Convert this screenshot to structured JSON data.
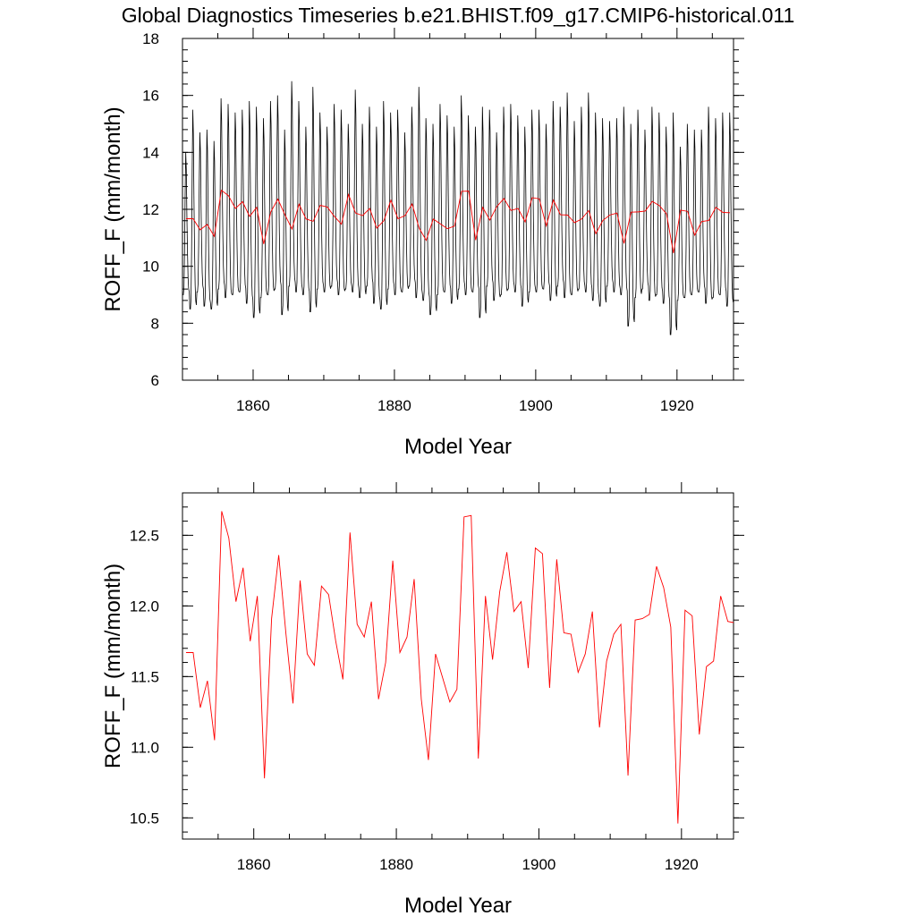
{
  "title": "Global Diagnostics Timeseries b.e21.BHIST.f09_g17.CMIP6-historical.011",
  "colors": {
    "monthly": "#000000",
    "annual": "#ff0000"
  },
  "chart_data": [
    {
      "type": "line",
      "xlabel": "Model Year",
      "ylabel": "ROFF_F (mm/month)",
      "xlim": [
        1850,
        1928
      ],
      "ylim": [
        6,
        18
      ],
      "xticks": [
        1860,
        1880,
        1900,
        1920
      ],
      "xtick_labels": [
        "1860",
        "1880",
        "1900",
        "1920"
      ],
      "yticks": [
        6,
        8,
        10,
        12,
        14,
        16,
        18
      ],
      "ytick_labels": [
        "6",
        "8",
        "10",
        "12",
        "14",
        "16",
        "18"
      ],
      "grid": false,
      "monthly_peaks": [
        14.0,
        15.5,
        14.7,
        14.8,
        14.4,
        15.9,
        15.7,
        15.4,
        15.5,
        15.8,
        15.6,
        15.2,
        15.8,
        16.0,
        14.8,
        16.5,
        15.8,
        14.9,
        16.3,
        15.4,
        14.9,
        15.7,
        15.5,
        15.0,
        16.2,
        15.0,
        15.6,
        14.9,
        15.8,
        15.4,
        15.5,
        14.7,
        15.6,
        16.3,
        15.2,
        15.0,
        15.7,
        15.3,
        14.9,
        16.0,
        15.3,
        14.9,
        15.6,
        15.5,
        14.7,
        15.6,
        15.7,
        15.3,
        14.9,
        15.5,
        15.5,
        15.0,
        15.8,
        15.6,
        16.1,
        15.1,
        15.6,
        16.1,
        15.4,
        15.2,
        15.1,
        15.2,
        15.6,
        15.0,
        15.5,
        14.8,
        15.6,
        15.4,
        14.9,
        15.4,
        14.2,
        15.0,
        14.8,
        14.8,
        15.6,
        15.2,
        15.4,
        15.4
      ],
      "monthly_troughs": [
        9.0,
        8.5,
        9.1,
        8.6,
        8.5,
        9.2,
        8.9,
        9.0,
        9.1,
        8.7,
        8.2,
        8.9,
        9.0,
        9.2,
        8.3,
        9.3,
        9.1,
        9.0,
        8.4,
        9.2,
        9.1,
        9.3,
        9.0,
        9.2,
        9.1,
        8.9,
        9.3,
        8.7,
        8.5,
        9.2,
        9.0,
        9.1,
        9.3,
        8.9,
        8.8,
        8.3,
        9.0,
        9.1,
        8.7,
        9.2,
        9.0,
        9.1,
        8.2,
        9.3,
        8.8,
        9.0,
        9.2,
        9.1,
        8.6,
        9.1,
        9.1,
        9.2,
        8.8,
        9.3,
        8.9,
        9.0,
        9.2,
        9.1,
        8.8,
        8.6,
        9.3,
        9.1,
        9.0,
        7.9,
        8.9,
        9.2,
        8.8,
        9.0,
        8.7,
        7.6,
        8.8,
        8.9,
        9.0,
        9.1,
        8.7,
        8.9,
        9.0,
        8.6
      ],
      "series": [
        {
          "x": [
            1850.5,
            1851.5,
            1852.5,
            1853.5,
            1854.5,
            1855.5,
            1856.5,
            1857.5,
            1858.5,
            1859.5,
            1860.5,
            1861.5,
            1862.5,
            1863.5,
            1864.5,
            1865.5,
            1866.5,
            1867.5,
            1868.5,
            1869.5,
            1870.5,
            1871.5,
            1872.5,
            1873.5,
            1874.5,
            1875.5,
            1876.5,
            1877.5,
            1878.5,
            1879.5,
            1880.5,
            1881.5,
            1882.5,
            1883.5,
            1884.5,
            1885.5,
            1886.5,
            1887.5,
            1888.5,
            1889.5,
            1890.5,
            1891.5,
            1892.5,
            1893.5,
            1894.5,
            1895.5,
            1896.5,
            1897.5,
            1898.5,
            1899.5,
            1900.5,
            1901.5,
            1902.5,
            1903.5,
            1904.5,
            1905.5,
            1906.5,
            1907.5,
            1908.5,
            1909.5,
            1910.5,
            1911.5,
            1912.5,
            1913.5,
            1914.5,
            1915.5,
            1916.5,
            1917.5,
            1918.5,
            1919.5,
            1920.5,
            1921.5,
            1922.5,
            1923.5,
            1924.5,
            1925.5,
            1926.5,
            1927.5
          ],
          "values": [
            11.67,
            11.67,
            11.28,
            11.47,
            11.05,
            12.67,
            12.48,
            12.03,
            12.27,
            11.75,
            12.07,
            10.78,
            11.91,
            12.36,
            11.81,
            11.31,
            12.18,
            11.66,
            11.58,
            12.14,
            12.08,
            11.75,
            11.48,
            12.52,
            11.87,
            11.78,
            12.03,
            11.34,
            11.6,
            12.32,
            11.67,
            11.78,
            12.19,
            11.34,
            10.91,
            11.66,
            11.49,
            11.32,
            11.41,
            12.63,
            12.64,
            10.92,
            12.07,
            11.62,
            12.1,
            12.38,
            11.96,
            12.03,
            11.56,
            12.41,
            12.37,
            11.42,
            12.33,
            11.81,
            11.8,
            11.53,
            11.66,
            11.96,
            11.14,
            11.61,
            11.8,
            11.87,
            10.8,
            11.9,
            11.91,
            11.94,
            12.28,
            12.13,
            11.85,
            10.46,
            11.97,
            11.93,
            11.09,
            11.57,
            11.61,
            12.07,
            11.89,
            11.88
          ]
        }
      ]
    },
    {
      "type": "line",
      "xlabel": "Model Year",
      "ylabel": "ROFF_F (mm/month)",
      "xlim": [
        1850,
        1927.3
      ],
      "ylim": [
        10.35,
        12.8
      ],
      "xticks": [
        1860,
        1880,
        1900,
        1920
      ],
      "xtick_labels": [
        "1860",
        "1880",
        "1900",
        "1920"
      ],
      "yticks": [
        10.5,
        11.0,
        11.5,
        12.0,
        12.5
      ],
      "ytick_labels": [
        "10.5",
        "11.0",
        "11.5",
        "12.0",
        "12.5"
      ],
      "grid": false,
      "series": [
        {
          "x": [
            1850.5,
            1851.5,
            1852.5,
            1853.5,
            1854.5,
            1855.5,
            1856.5,
            1857.5,
            1858.5,
            1859.5,
            1860.5,
            1861.5,
            1862.5,
            1863.5,
            1864.5,
            1865.5,
            1866.5,
            1867.5,
            1868.5,
            1869.5,
            1870.5,
            1871.5,
            1872.5,
            1873.5,
            1874.5,
            1875.5,
            1876.5,
            1877.5,
            1878.5,
            1879.5,
            1880.5,
            1881.5,
            1882.5,
            1883.5,
            1884.5,
            1885.5,
            1886.5,
            1887.5,
            1888.5,
            1889.5,
            1890.5,
            1891.5,
            1892.5,
            1893.5,
            1894.5,
            1895.5,
            1896.5,
            1897.5,
            1898.5,
            1899.5,
            1900.5,
            1901.5,
            1902.5,
            1903.5,
            1904.5,
            1905.5,
            1906.5,
            1907.5,
            1908.5,
            1909.5,
            1910.5,
            1911.5,
            1912.5,
            1913.5,
            1914.5,
            1915.5,
            1916.5,
            1917.5,
            1918.5,
            1919.5,
            1920.5,
            1921.5,
            1922.5,
            1923.5,
            1924.5,
            1925.5,
            1926.5,
            1927.5
          ],
          "values": [
            11.67,
            11.67,
            11.28,
            11.47,
            11.05,
            12.67,
            12.48,
            12.03,
            12.27,
            11.75,
            12.07,
            10.78,
            11.91,
            12.36,
            11.81,
            11.31,
            12.18,
            11.66,
            11.58,
            12.14,
            12.08,
            11.75,
            11.48,
            12.52,
            11.87,
            11.78,
            12.03,
            11.34,
            11.6,
            12.32,
            11.67,
            11.78,
            12.19,
            11.34,
            10.91,
            11.66,
            11.49,
            11.32,
            11.41,
            12.63,
            12.64,
            10.92,
            12.07,
            11.62,
            12.1,
            12.38,
            11.96,
            12.03,
            11.56,
            12.41,
            12.37,
            11.42,
            12.33,
            11.81,
            11.8,
            11.53,
            11.66,
            11.96,
            11.14,
            11.61,
            11.8,
            11.87,
            10.8,
            11.9,
            11.91,
            11.94,
            12.28,
            12.13,
            11.85,
            10.46,
            11.97,
            11.93,
            11.09,
            11.57,
            11.61,
            12.07,
            11.89,
            11.88
          ]
        }
      ]
    }
  ]
}
